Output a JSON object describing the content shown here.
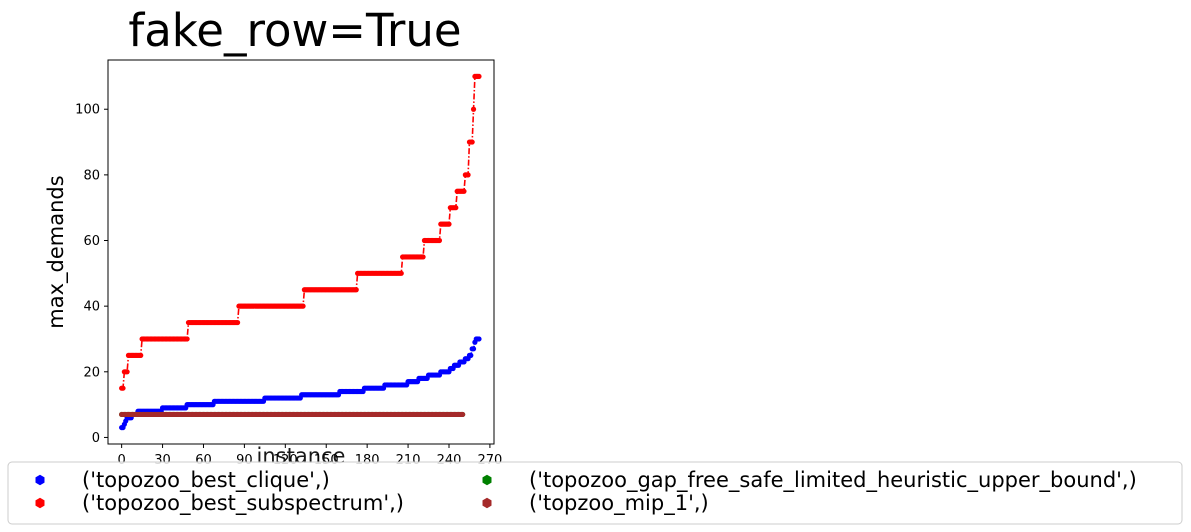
{
  "chart_data": {
    "type": "line",
    "title": "fake_row=True",
    "xlabel": "instance",
    "ylabel": "max_demands",
    "xlim": [
      -10,
      273
    ],
    "ylim": [
      -2,
      115
    ],
    "xticks": [
      0,
      30,
      60,
      90,
      120,
      150,
      180,
      210,
      240,
      270
    ],
    "yticks": [
      0,
      20,
      40,
      60,
      80,
      100
    ],
    "grid": false,
    "legend_placement": "bottom, 2 columns",
    "series": [
      {
        "name": "('topozoo_best_clique',)",
        "color": "#0000ff",
        "linestyle": "dashdot",
        "steps": [
          [
            0,
            3
          ],
          [
            2,
            4
          ],
          [
            3,
            5
          ],
          [
            4,
            6
          ],
          [
            8,
            7
          ],
          [
            12,
            8
          ],
          [
            30,
            9
          ],
          [
            48,
            10
          ],
          [
            68,
            11
          ],
          [
            105,
            12
          ],
          [
            132,
            13
          ],
          [
            160,
            14
          ],
          [
            178,
            15
          ],
          [
            193,
            16
          ],
          [
            210,
            17
          ],
          [
            218,
            18
          ],
          [
            225,
            19
          ],
          [
            234,
            20
          ],
          [
            241,
            21
          ],
          [
            244,
            22
          ],
          [
            248,
            23
          ],
          [
            252,
            24
          ],
          [
            255,
            25
          ],
          [
            257,
            27
          ],
          [
            259,
            29
          ],
          [
            260,
            30
          ],
          [
            262,
            30
          ]
        ]
      },
      {
        "name": "('topozoo_best_subspectrum',)",
        "color": "#ff0000",
        "linestyle": "dashdot",
        "steps": [
          [
            0,
            15
          ],
          [
            2,
            20
          ],
          [
            5,
            25
          ],
          [
            15,
            30
          ],
          [
            49,
            35
          ],
          [
            86,
            40
          ],
          [
            134,
            45
          ],
          [
            173,
            50
          ],
          [
            206,
            55
          ],
          [
            222,
            60
          ],
          [
            234,
            65
          ],
          [
            241,
            70
          ],
          [
            246,
            75
          ],
          [
            252,
            80
          ],
          [
            255,
            90
          ],
          [
            258,
            100
          ],
          [
            259,
            110
          ],
          [
            262,
            110
          ]
        ]
      },
      {
        "name": "('topozoo_gap_free_safe_limited_heuristic_upper_bound',)",
        "color": "#008000",
        "linestyle": "dashdot",
        "steps": [
          [
            0,
            7
          ],
          [
            250,
            7
          ]
        ]
      },
      {
        "name": "('topzoo_mip_1',)",
        "color": "#a52a2a",
        "linestyle": "dashdot",
        "steps": [
          [
            0,
            7
          ],
          [
            250,
            7
          ]
        ]
      }
    ]
  }
}
